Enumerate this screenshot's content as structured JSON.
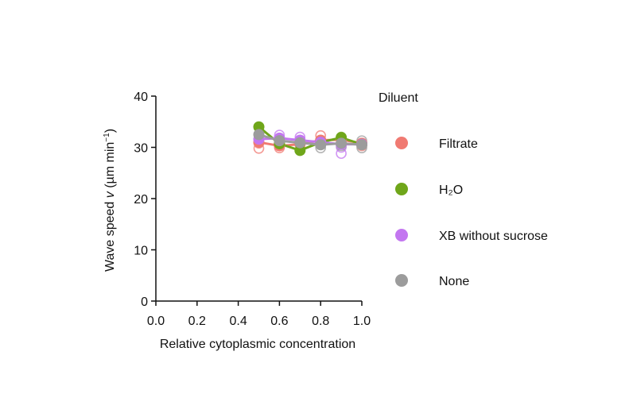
{
  "chart_data": {
    "type": "scatter",
    "xlabel": "Relative cytoplasmic concentration",
    "ylabel": {
      "prefix": "Wave speed ",
      "var": "v",
      "unit_open": " (µm min",
      "unit_sup": "−1",
      "unit_close": ")"
    },
    "xlim": [
      0,
      1.0
    ],
    "ylim": [
      0,
      40
    ],
    "x_ticks": [
      0.0,
      0.2,
      0.4,
      0.6,
      0.8,
      1.0
    ],
    "x_tick_labels": [
      "0.0",
      "0.2",
      "0.4",
      "0.6",
      "0.8",
      "1.0"
    ],
    "y_ticks": [
      0,
      10,
      20,
      30,
      40
    ],
    "y_tick_labels": [
      "0",
      "10",
      "20",
      "30",
      "40"
    ],
    "grid": false,
    "legend": {
      "title": "Diluent",
      "placement": "right"
    },
    "series": [
      {
        "key": "filtrate",
        "name": "Filtrate",
        "color": "#f07a72",
        "mean": {
          "x": [
            0.5,
            0.6,
            0.7,
            0.8,
            0.9,
            1.0
          ],
          "y": [
            31.0,
            30.3,
            30.6,
            31.4,
            31.5,
            30.8
          ]
        },
        "replicates": {
          "x": [
            0.5,
            0.5,
            0.6,
            0.6,
            0.7,
            0.8,
            0.8,
            0.9,
            1.0
          ],
          "y": [
            29.8,
            30.8,
            29.9,
            30.7,
            31.0,
            32.3,
            30.9,
            31.6,
            30.3
          ]
        }
      },
      {
        "key": "h2o",
        "name": "H₂O",
        "color": "#6fa61a",
        "mean": {
          "x": [
            0.5,
            0.6,
            0.7,
            0.8,
            0.9,
            1.0
          ],
          "y": [
            34.0,
            30.7,
            29.4,
            31.0,
            31.9,
            30.6
          ]
        },
        "replicates": {
          "x": [
            0.6,
            0.8,
            0.9
          ],
          "y": [
            31.0,
            31.3,
            32.0
          ]
        }
      },
      {
        "key": "xb",
        "name": "XB without sucrose",
        "color": "#c376f0",
        "mean": {
          "x": [
            0.5,
            0.6,
            0.7,
            0.8,
            0.9,
            1.0
          ],
          "y": [
            31.6,
            31.8,
            31.4,
            31.0,
            30.6,
            30.6
          ]
        },
        "replicates": {
          "x": [
            0.6,
            0.7,
            0.9,
            0.9
          ],
          "y": [
            32.4,
            32.0,
            28.8,
            30.0
          ]
        }
      },
      {
        "key": "none",
        "name": "None",
        "color": "#9c9c9c",
        "mean": {
          "x": [
            0.5,
            0.6,
            0.7,
            0.8,
            0.9,
            1.0
          ],
          "y": [
            32.5,
            31.3,
            30.9,
            30.5,
            30.8,
            30.5
          ]
        },
        "replicates": {
          "x": [
            0.8,
            0.9,
            1.0,
            1.0
          ],
          "y": [
            29.9,
            30.3,
            29.9,
            31.3
          ]
        }
      }
    ]
  }
}
